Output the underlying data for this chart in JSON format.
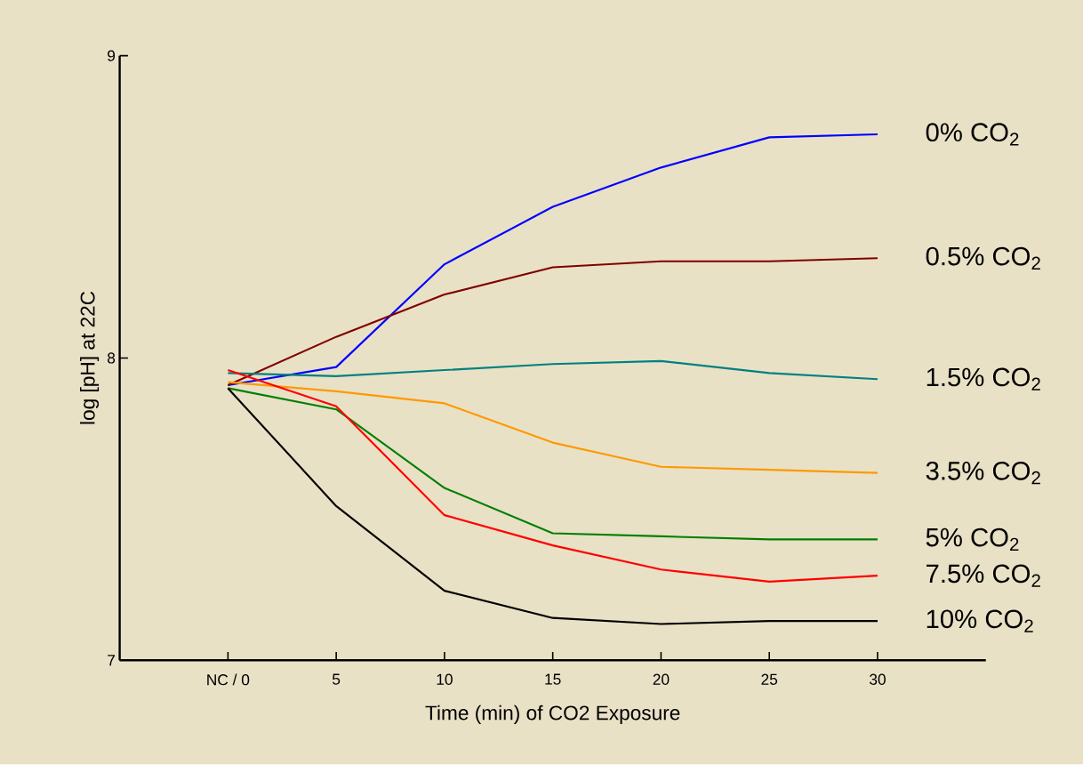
{
  "chart_data": {
    "type": "line",
    "xlabel": "Time (min) of CO2 Exposure",
    "ylabel": "log [pH] at 22C",
    "x": [
      0,
      5,
      10,
      15,
      20,
      25,
      30
    ],
    "xlim": [
      -5,
      35
    ],
    "ylim": [
      7,
      9
    ],
    "xticks": [
      {
        "value": 0,
        "label": "NC / 0"
      },
      5,
      10,
      15,
      20,
      25,
      30
    ],
    "yticks": [
      7,
      8,
      9
    ],
    "grid": false,
    "marker": "none",
    "line_style": "solid",
    "series": [
      {
        "name": "0% CO$_{2}$",
        "color": "#0000ff",
        "values": [
          7.91,
          7.97,
          8.31,
          8.5,
          8.63,
          8.73,
          8.74
        ]
      },
      {
        "name": "0.5% CO$_{2}$",
        "color": "#800000",
        "values": [
          7.91,
          8.07,
          8.21,
          8.3,
          8.32,
          8.32,
          8.33
        ]
      },
      {
        "name": "1.5% CO$_{2}$",
        "color": "#008080",
        "values": [
          7.95,
          7.94,
          7.96,
          7.98,
          7.99,
          7.95,
          7.93
        ]
      },
      {
        "name": "3.5% CO$_{2}$",
        "color": "#ff9900",
        "values": [
          7.92,
          7.89,
          7.85,
          7.72,
          7.64,
          7.63,
          7.62
        ]
      },
      {
        "name": "5% CO$_{2}$",
        "color": "#008000",
        "values": [
          7.9,
          7.83,
          7.57,
          7.42,
          7.41,
          7.4,
          7.4
        ]
      },
      {
        "name": "7.5% CO$_{2}$",
        "color": "#ff0000",
        "values": [
          7.96,
          7.84,
          7.48,
          7.38,
          7.3,
          7.26,
          7.28
        ]
      },
      {
        "name": "10% CO$_{2}$",
        "color": "#000000",
        "values": [
          7.9,
          7.51,
          7.23,
          7.14,
          7.12,
          7.13,
          7.13
        ]
      }
    ]
  }
}
